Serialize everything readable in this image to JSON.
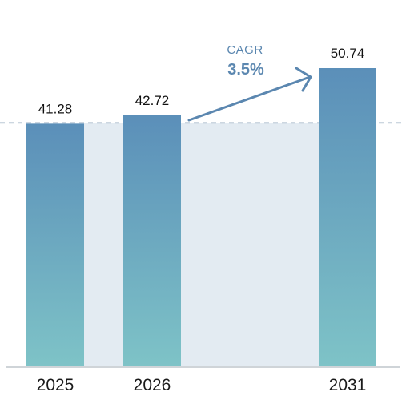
{
  "chart_data": {
    "type": "bar",
    "categories": [
      "2025",
      "2026",
      "2031"
    ],
    "values": [
      41.28,
      42.72,
      50.74
    ],
    "value_labels": [
      "41.28",
      "42.72",
      "50.74"
    ],
    "ylim": [
      0,
      50.74
    ],
    "reference_line": {
      "value": 41.28,
      "style": "dashed"
    },
    "cagr": {
      "label": "CAGR",
      "value": "3.5%"
    },
    "colors": {
      "bar_top": "#5b8fb9",
      "bar_bottom": "#7ec3c7",
      "band": "#e3ebf2",
      "reference_line": "#7a94ad",
      "arrow": "#5b87b0",
      "cagr_text": "#5b87b0",
      "baseline": "#bfc6cc"
    }
  }
}
